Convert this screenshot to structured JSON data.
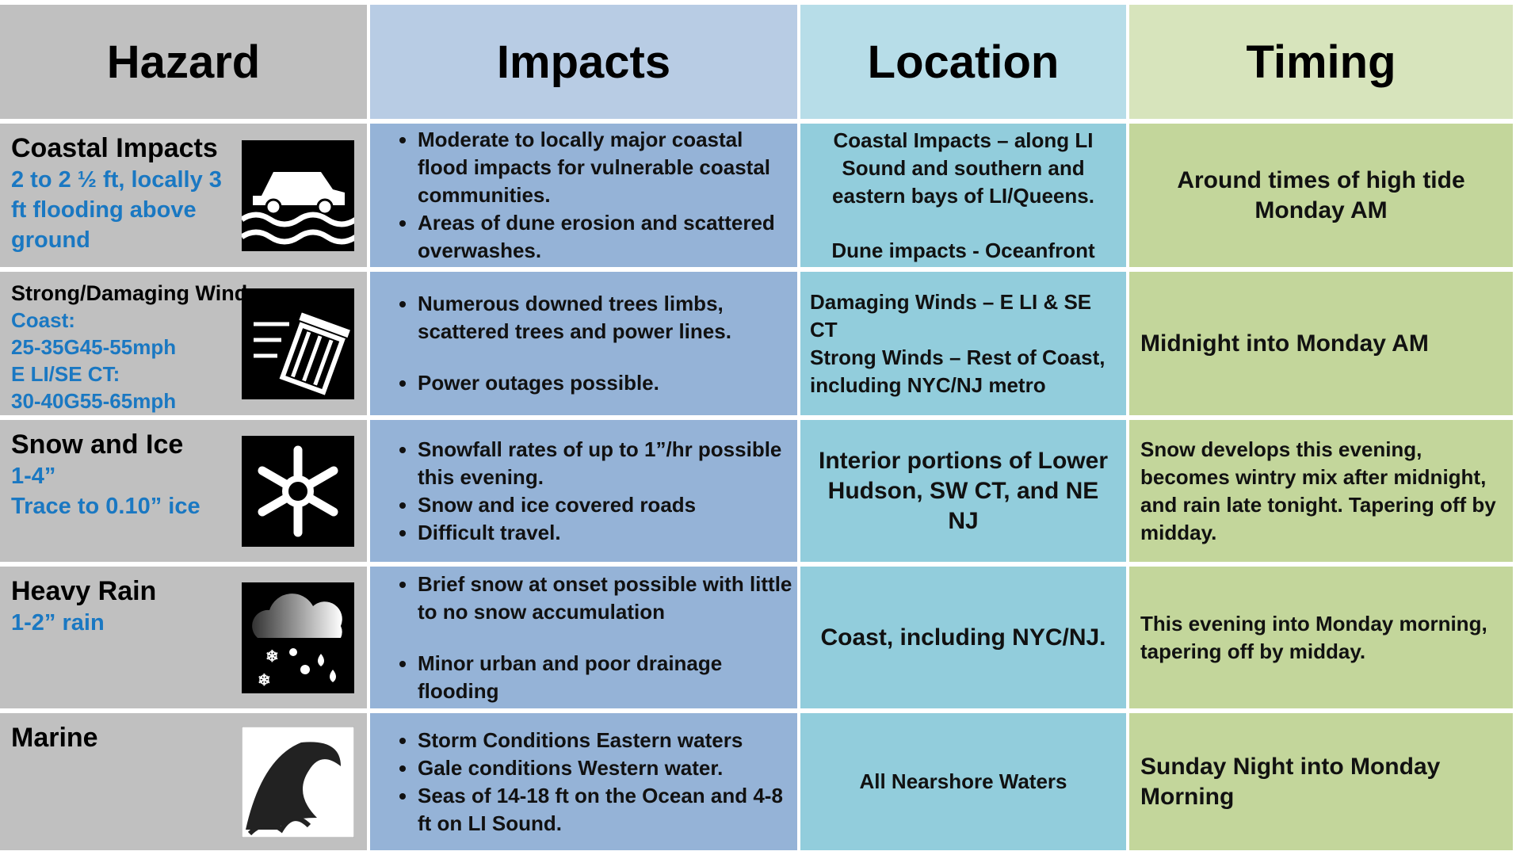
{
  "header": {
    "columns": [
      "Hazard",
      "Impacts",
      "Location",
      "Timing"
    ]
  },
  "rows": [
    {
      "hazard": {
        "title": "Coastal Impacts",
        "details": [
          "2 to 2 ½ ft, locally 3 ft flooding above ground"
        ]
      },
      "impacts": [
        "Moderate to locally major coastal flood impacts for vulnerable coastal communities.",
        "Areas of dune erosion and scattered overwashes."
      ],
      "location": [
        "Coastal Impacts – along LI Sound and southern and eastern bays of LI/Queens.",
        "Dune impacts - Oceanfront"
      ],
      "timing": [
        "Around times of high tide Monday AM"
      ]
    },
    {
      "hazard": {
        "title": "Strong/Damaging Winds",
        "details": [
          "Coast:",
          "25-35G45-55mph",
          "E LI/SE CT:",
          "30-40G55-65mph"
        ]
      },
      "impacts": [
        "Numerous downed trees limbs, scattered trees and power lines.",
        "Power outages possible."
      ],
      "location": [
        "Damaging Winds – E LI & SE CT",
        "Strong Winds – Rest of Coast, including NYC/NJ metro"
      ],
      "timing": [
        "Midnight into Monday AM"
      ]
    },
    {
      "hazard": {
        "title": "Snow and Ice",
        "details": [
          "1-4”",
          "Trace to 0.10” ice"
        ]
      },
      "impacts": [
        "Snowfall rates of up to 1”/hr possible this evening.",
        "Snow and ice covered roads",
        "Difficult travel."
      ],
      "location": [
        "Interior portions of Lower Hudson, SW CT, and NE NJ"
      ],
      "timing": [
        "Snow develops this evening, becomes wintry mix after midnight, and rain late tonight. Tapering off by midday."
      ]
    },
    {
      "hazard": {
        "title": "Heavy Rain",
        "details": [
          "1-2” rain"
        ]
      },
      "impacts": [
        "Brief snow at onset possible with little to no snow accumulation",
        "Minor urban and poor drainage flooding"
      ],
      "location": [
        "Coast, including NYC/NJ."
      ],
      "timing": [
        "This evening into Monday morning, tapering off by midday."
      ]
    },
    {
      "hazard": {
        "title": "Marine",
        "details": []
      },
      "impacts": [
        "Storm Conditions Eastern waters",
        "Gale conditions Western water.",
        "Seas of 14-18 ft on the Ocean and 4-8 ft on LI Sound."
      ],
      "location": [
        "All Nearshore Waters"
      ],
      "timing": [
        "Sunday Night into Monday Morning"
      ]
    }
  ]
}
